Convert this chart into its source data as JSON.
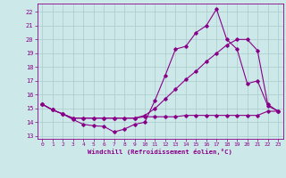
{
  "xlabel": "Windchill (Refroidissement éolien,°C)",
  "xlim": [
    -0.5,
    23.5
  ],
  "ylim": [
    12.8,
    22.6
  ],
  "yticks": [
    13,
    14,
    15,
    16,
    17,
    18,
    19,
    20,
    21,
    22
  ],
  "xticks": [
    0,
    1,
    2,
    3,
    4,
    5,
    6,
    7,
    8,
    9,
    10,
    11,
    12,
    13,
    14,
    15,
    16,
    17,
    18,
    19,
    20,
    21,
    22,
    23
  ],
  "bg_color": "#cce8e8",
  "grid_color": "#aacccc",
  "line_color": "#880088",
  "line1_x": [
    0,
    1,
    2,
    3,
    4,
    5,
    6,
    7,
    8,
    9,
    10,
    11,
    12,
    13,
    14,
    15,
    16,
    17,
    18,
    19,
    20,
    21,
    22,
    23
  ],
  "line1_y": [
    15.3,
    14.9,
    14.6,
    14.2,
    13.85,
    13.75,
    13.7,
    13.3,
    13.5,
    13.85,
    14.0,
    15.6,
    17.4,
    19.3,
    19.5,
    20.5,
    21.0,
    22.2,
    20.0,
    19.3,
    16.8,
    17.0,
    15.2,
    14.8
  ],
  "line2_x": [
    0,
    1,
    2,
    3,
    4,
    5,
    6,
    7,
    8,
    9,
    10,
    11,
    12,
    13,
    14,
    15,
    16,
    17,
    18,
    19,
    20,
    21,
    22,
    23
  ],
  "line2_y": [
    15.3,
    14.9,
    14.6,
    14.3,
    14.3,
    14.3,
    14.3,
    14.3,
    14.3,
    14.3,
    14.5,
    15.0,
    15.7,
    16.4,
    17.1,
    17.7,
    18.4,
    19.0,
    19.6,
    20.0,
    20.0,
    19.2,
    15.3,
    14.8
  ],
  "line3_x": [
    0,
    1,
    2,
    3,
    4,
    5,
    6,
    7,
    8,
    9,
    10,
    11,
    12,
    13,
    14,
    15,
    16,
    17,
    18,
    19,
    20,
    21,
    22,
    23
  ],
  "line3_y": [
    15.3,
    14.9,
    14.6,
    14.3,
    14.3,
    14.3,
    14.3,
    14.3,
    14.3,
    14.3,
    14.4,
    14.4,
    14.4,
    14.4,
    14.5,
    14.5,
    14.5,
    14.5,
    14.5,
    14.5,
    14.5,
    14.5,
    14.8,
    14.8
  ]
}
